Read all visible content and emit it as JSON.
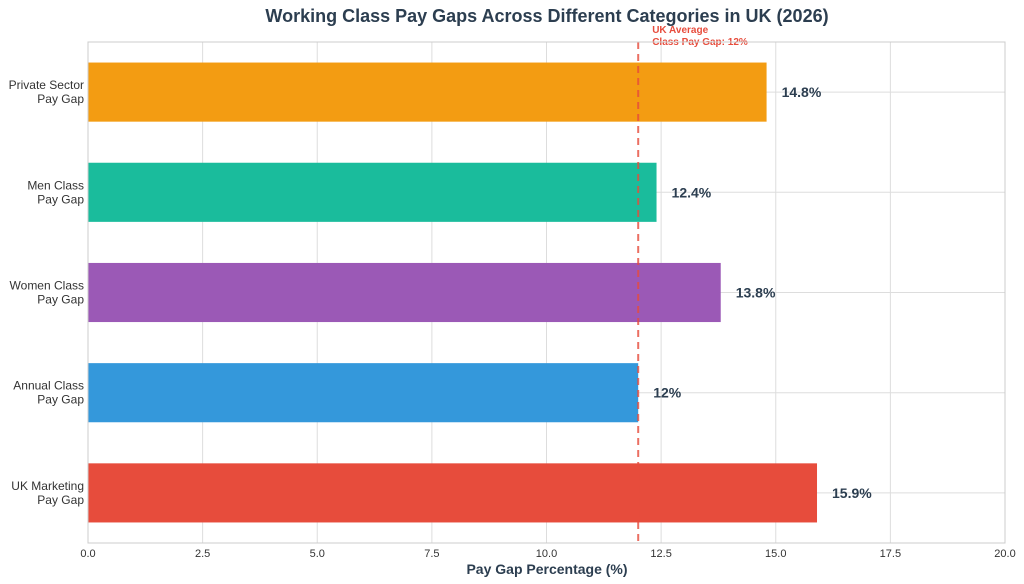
{
  "chart_data": {
    "type": "bar",
    "orientation": "horizontal",
    "title": "Working Class Pay Gaps Across Different Categories in UK (2026)",
    "xlabel": "Pay Gap Percentage (%)",
    "ylabel": "",
    "xlim": [
      0,
      20
    ],
    "xticks": [
      "0.0",
      "2.5",
      "5.0",
      "7.5",
      "10.0",
      "12.5",
      "15.0",
      "17.5",
      "20.0"
    ],
    "xtick_values": [
      0,
      2.5,
      5,
      7.5,
      10,
      12.5,
      15,
      17.5,
      20
    ],
    "grid": true,
    "categories": [
      [
        "Private Sector",
        "Pay Gap"
      ],
      [
        "Men Class",
        "Pay Gap"
      ],
      [
        "Women Class",
        "Pay Gap"
      ],
      [
        "Annual Class",
        "Pay Gap"
      ],
      [
        "UK Marketing",
        "Pay Gap"
      ]
    ],
    "values": [
      14.8,
      12.4,
      13.8,
      12,
      15.9
    ],
    "value_labels": [
      "14.8%",
      "12.4%",
      "13.8%",
      "12%",
      "15.9%"
    ],
    "colors": [
      "#f39c12",
      "#1abc9c",
      "#9b59b6",
      "#3498db",
      "#e74c3c"
    ],
    "reference_line": {
      "value": 12,
      "label": [
        "UK Average",
        "Class Pay Gap: 12%"
      ],
      "color": "#e74c3c",
      "style": "dashed"
    }
  }
}
